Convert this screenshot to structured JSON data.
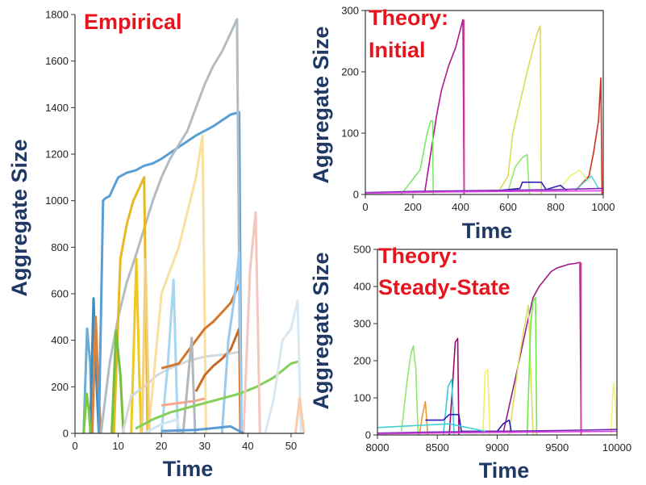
{
  "chart_data": [
    {
      "type": "line",
      "title": "Empirical",
      "xlabel": "Time",
      "ylabel": "Aggregate Size",
      "xlim": [
        0,
        53
      ],
      "ylim": [
        0,
        1800
      ],
      "xticks": [
        0,
        10,
        20,
        30,
        40,
        50
      ],
      "yticks": [
        0,
        200,
        400,
        600,
        800,
        1000,
        1200,
        1400,
        1600,
        1800
      ],
      "series": [
        {
          "color": "#6aaed6",
          "x": [
            2,
            2.8,
            3.5,
            4
          ],
          "y": [
            0,
            450,
            300,
            0
          ]
        },
        {
          "color": "#3d8bbd",
          "x": [
            3.5,
            4.3,
            4.8,
            5.5
          ],
          "y": [
            0,
            580,
            300,
            0
          ]
        },
        {
          "color": "#7ac943",
          "x": [
            2,
            2.7,
            3.2,
            3.6
          ],
          "y": [
            0,
            170,
            100,
            0
          ]
        },
        {
          "color": "#e2813a",
          "x": [
            4,
            4.8,
            5.4,
            6
          ],
          "y": [
            0,
            500,
            200,
            0
          ]
        },
        {
          "color": "#5a9fd4",
          "x": [
            5.5,
            6.5,
            7,
            8,
            10,
            12,
            14,
            16,
            18,
            20,
            24,
            28,
            32,
            36,
            38,
            38.5
          ],
          "y": [
            0,
            1000,
            1010,
            1020,
            1100,
            1120,
            1130,
            1150,
            1160,
            1180,
            1230,
            1280,
            1320,
            1370,
            1380,
            0
          ]
        },
        {
          "color": "#b2bcc2",
          "x": [
            6,
            8,
            10,
            12,
            14,
            16,
            18,
            20,
            22,
            24,
            26,
            28,
            30,
            32,
            34,
            36,
            37.5,
            38.3
          ],
          "y": [
            0,
            300,
            500,
            650,
            760,
            880,
            1000,
            1100,
            1180,
            1240,
            1300,
            1400,
            1500,
            1580,
            1640,
            1720,
            1780,
            0
          ]
        },
        {
          "color": "#e8b820",
          "x": [
            9,
            10.5,
            12,
            13.5,
            15,
            16,
            16.8
          ],
          "y": [
            0,
            750,
            900,
            1000,
            1060,
            1100,
            0
          ]
        },
        {
          "color": "#72c13d",
          "x": [
            8.5,
            9.5,
            10.5,
            11.2
          ],
          "y": [
            0,
            440,
            250,
            0
          ]
        },
        {
          "color": "#f0c820",
          "x": [
            13,
            14.2,
            14.8,
            15.3
          ],
          "y": [
            0,
            750,
            300,
            0
          ]
        },
        {
          "color": "#d3d8da",
          "x": [
            11,
            13,
            16,
            19,
            22,
            26,
            30,
            35,
            38
          ],
          "y": [
            0,
            160,
            200,
            250,
            280,
            310,
            330,
            340,
            350
          ]
        },
        {
          "color": "#fae0a0",
          "x": [
            17,
            20,
            22,
            24,
            26,
            28,
            29.5,
            30.3
          ],
          "y": [
            0,
            600,
            700,
            800,
            950,
            1100,
            1280,
            0
          ]
        },
        {
          "color": "#a6d6f0",
          "x": [
            20,
            21.5,
            22.8,
            23.8
          ],
          "y": [
            0,
            300,
            660,
            0
          ]
        },
        {
          "color": "#f0d080",
          "x": [
            15.5,
            16.3,
            17.2
          ],
          "y": [
            0,
            750,
            0
          ]
        },
        {
          "color": "#cfe6f5",
          "x": [
            16,
            18,
            20,
            22,
            23.5,
            24.5
          ],
          "y": [
            0,
            20,
            40,
            50,
            60,
            0
          ]
        },
        {
          "color": "#d1782f",
          "x": [
            20,
            22,
            24,
            26,
            28,
            30,
            32,
            34,
            36,
            38
          ],
          "y": [
            280,
            290,
            300,
            350,
            400,
            450,
            480,
            520,
            560,
            640
          ]
        },
        {
          "color": "#c76a25",
          "x": [
            28,
            30,
            32,
            34,
            36,
            38,
            38.3
          ],
          "y": [
            180,
            250,
            290,
            320,
            360,
            450,
            0
          ]
        },
        {
          "color": "#f7a88a",
          "x": [
            20,
            24,
            28,
            30
          ],
          "y": [
            120,
            130,
            140,
            150
          ]
        },
        {
          "color": "#b0b8bd",
          "x": [
            25,
            26,
            27,
            27.8
          ],
          "y": [
            0,
            200,
            410,
            0
          ]
        },
        {
          "color": "#9cc9ec",
          "x": [
            34,
            35.5,
            37,
            38,
            38.5
          ],
          "y": [
            0,
            400,
            600,
            780,
            0
          ]
        },
        {
          "color": "#86cf58",
          "x": [
            14,
            18,
            22,
            26,
            30,
            34,
            38,
            42,
            46,
            50,
            52
          ],
          "y": [
            20,
            60,
            90,
            110,
            130,
            150,
            170,
            200,
            240,
            300,
            310
          ]
        },
        {
          "color": "#f4c6c0",
          "x": [
            39,
            40.5,
            41.8,
            42.8
          ],
          "y": [
            0,
            700,
            950,
            0
          ]
        },
        {
          "color": "#d9e7f0",
          "x": [
            44,
            46,
            48,
            50,
            51.5,
            52.3
          ],
          "y": [
            0,
            150,
            400,
            450,
            570,
            0
          ]
        },
        {
          "color": "#f9cbaa",
          "x": [
            51,
            52,
            53
          ],
          "y": [
            0,
            150,
            0
          ]
        },
        {
          "color": "#5b9bd5",
          "x": [
            20,
            28,
            36,
            39
          ],
          "y": [
            10,
            15,
            30,
            0
          ]
        }
      ]
    },
    {
      "type": "line",
      "title": "Theory:\nInitial",
      "xlabel": "Time",
      "ylabel": "Aggregate Size",
      "xlim": [
        0,
        1000
      ],
      "ylim": [
        0,
        300
      ],
      "xticks": [
        0,
        200,
        400,
        600,
        800,
        1000
      ],
      "yticks": [
        0,
        100,
        200,
        300
      ],
      "series": [
        {
          "color": "#b0168f",
          "x": [
            250,
            280,
            300,
            320,
            350,
            380,
            400,
            410,
            415
          ],
          "y": [
            5,
            80,
            130,
            170,
            210,
            240,
            270,
            285,
            0
          ]
        },
        {
          "color": "#e0409c",
          "x": [
            415,
            416
          ],
          "y": [
            285,
            0
          ]
        },
        {
          "color": "#7ce868",
          "x": [
            150,
            200,
            230,
            260,
            275,
            283,
            285
          ],
          "y": [
            0,
            25,
            40,
            100,
            120,
            120,
            0
          ]
        },
        {
          "color": "#d8dc55",
          "x": [
            560,
            600,
            620,
            650,
            680,
            700,
            720,
            735,
            740
          ],
          "y": [
            5,
            30,
            100,
            150,
            200,
            230,
            260,
            275,
            0
          ]
        },
        {
          "color": "#8ee86a",
          "x": [
            600,
            630,
            660,
            680,
            690
          ],
          "y": [
            5,
            45,
            60,
            65,
            0
          ]
        },
        {
          "color": "#d0301c",
          "x": [
            880,
            940,
            960,
            980,
            990,
            995
          ],
          "y": [
            5,
            30,
            70,
            120,
            190,
            0
          ]
        },
        {
          "color": "#f0f080",
          "x": [
            820,
            860,
            900,
            940
          ],
          "y": [
            10,
            30,
            40,
            20
          ]
        },
        {
          "color": "#5cd8d0",
          "x": [
            880,
            920,
            950,
            980
          ],
          "y": [
            5,
            20,
            30,
            10
          ]
        },
        {
          "color": "#3220c0",
          "x": [
            520,
            600,
            650,
            660,
            740,
            760,
            820,
            850
          ],
          "y": [
            5,
            8,
            10,
            20,
            20,
            8,
            15,
            5
          ]
        },
        {
          "color": "#7c2ab8",
          "x": [
            0,
            200,
            400,
            600,
            800,
            1000
          ],
          "y": [
            3,
            5,
            6,
            7,
            8,
            10
          ]
        },
        {
          "color": "#e040e0",
          "x": [
            0,
            300,
            600,
            1000
          ],
          "y": [
            2,
            4,
            5,
            6
          ]
        }
      ]
    },
    {
      "type": "line",
      "title": "Theory:\nSteady-State",
      "xlabel": "Time",
      "ylabel": "Aggregate Size",
      "xlim": [
        8000,
        10000
      ],
      "ylim": [
        0,
        500
      ],
      "xticks": [
        8000,
        8500,
        9000,
        9500,
        10000
      ],
      "yticks": [
        0,
        100,
        200,
        300,
        400,
        500
      ],
      "series": [
        {
          "color": "#9c1a86",
          "x": [
            9050,
            9150,
            9250,
            9300,
            9350,
            9400,
            9450,
            9500,
            9550,
            9600,
            9650,
            9690,
            9700
          ],
          "y": [
            5,
            150,
            300,
            370,
            400,
            420,
            440,
            450,
            455,
            460,
            462,
            465,
            0
          ]
        },
        {
          "color": "#e040a0",
          "x": [
            9700,
            9701
          ],
          "y": [
            465,
            0
          ]
        },
        {
          "color": "#8ee66a",
          "x": [
            8200,
            8250,
            8280,
            8300,
            8320,
            8340
          ],
          "y": [
            10,
            150,
            220,
            240,
            180,
            0
          ]
        },
        {
          "color": "#d8e060",
          "x": [
            9100,
            9180,
            9220,
            9260,
            9300
          ],
          "y": [
            0,
            200,
            280,
            350,
            0
          ]
        },
        {
          "color": "#6ee84a",
          "x": [
            9250,
            9280,
            9300,
            9320,
            9330
          ],
          "y": [
            0,
            300,
            360,
            370,
            0
          ]
        },
        {
          "color": "#a00a70",
          "x": [
            8600,
            8630,
            8650,
            8670,
            8680
          ],
          "y": [
            0,
            150,
            250,
            260,
            0
          ]
        },
        {
          "color": "#ee9830",
          "x": [
            8350,
            8380,
            8400,
            8420
          ],
          "y": [
            0,
            60,
            90,
            0
          ]
        },
        {
          "color": "#40c8e0",
          "x": [
            8550,
            8590,
            8620,
            8640
          ],
          "y": [
            0,
            130,
            150,
            0
          ]
        },
        {
          "color": "#f2f060",
          "x": [
            8880,
            8900,
            8920,
            8940
          ],
          "y": [
            0,
            170,
            175,
            0
          ]
        },
        {
          "color": "#f2f080",
          "x": [
            9950,
            9970,
            9985,
            10000
          ],
          "y": [
            0,
            140,
            100,
            0
          ]
        },
        {
          "color": "#2a1ab8",
          "x": [
            8400,
            8550,
            8600,
            8680,
            8700,
            9000,
            9050,
            9100,
            9120
          ],
          "y": [
            40,
            40,
            55,
            55,
            10,
            10,
            30,
            40,
            5
          ]
        },
        {
          "color": "#7428b8",
          "x": [
            8000,
            8500,
            9000,
            9500,
            10000
          ],
          "y": [
            5,
            8,
            10,
            12,
            15
          ]
        },
        {
          "color": "#e040e0",
          "x": [
            8000,
            8700,
            9400,
            10000
          ],
          "y": [
            3,
            6,
            8,
            10
          ]
        },
        {
          "color": "#40d0d0",
          "x": [
            8000,
            8300,
            8600,
            8900
          ],
          "y": [
            20,
            25,
            30,
            10
          ]
        }
      ]
    }
  ]
}
